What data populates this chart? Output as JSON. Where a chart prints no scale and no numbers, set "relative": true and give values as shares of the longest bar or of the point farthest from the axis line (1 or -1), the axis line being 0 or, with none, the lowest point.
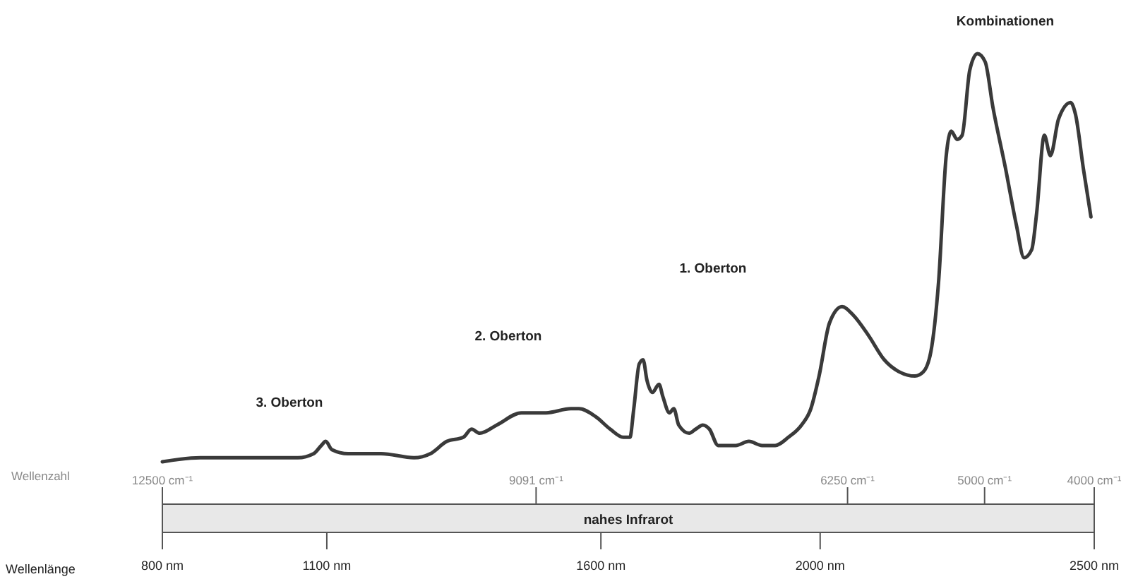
{
  "chart_data": {
    "type": "line",
    "relative": true,
    "xlabel": "Wellenlänge",
    "x2label": "Wellenzahl",
    "xlim": [
      800,
      2500
    ],
    "xticks": [
      {
        "value": 800,
        "label": "800 nm"
      },
      {
        "value": 1100,
        "label": "1100 nm"
      },
      {
        "value": 1600,
        "label": "1600 nm"
      },
      {
        "value": 2000,
        "label": "2000 nm"
      },
      {
        "value": 2500,
        "label": "2500 nm"
      }
    ],
    "x2lim": [
      12500,
      4000
    ],
    "x2ticks": [
      {
        "value": 12500,
        "label": "12500 cm⁻¹"
      },
      {
        "value": 9091,
        "label": "9091 cm⁻¹"
      },
      {
        "value": 6250,
        "label": "6250 cm⁻¹"
      },
      {
        "value": 5000,
        "label": "5000 cm⁻¹"
      },
      {
        "value": 4000,
        "label": "4000 cm⁻¹"
      }
    ],
    "annotations": [
      "3. Oberton",
      "2. Oberton",
      "1. Oberton",
      "Kombinationen",
      "nahes Infrarot"
    ],
    "series": [
      {
        "color": "#3a3a3a",
        "x": [
          800,
          869,
          968,
          1047,
          1076,
          1090,
          1098,
          1109,
          1139,
          1199,
          1259,
          1289,
          1319,
          1349,
          1364,
          1379,
          1410,
          1455,
          1500,
          1545,
          1560,
          1591,
          1617,
          1641,
          1653,
          1660,
          1670,
          1677,
          1684,
          1694,
          1706,
          1713,
          1725,
          1733,
          1742,
          1761,
          1773,
          1786,
          1798,
          1814,
          1846,
          1870,
          1894,
          1918,
          1942,
          1966,
          1983,
          1998,
          2017,
          2040,
          2060,
          2088,
          2117,
          2145,
          2173,
          2188,
          2202,
          2216,
          2230,
          2239,
          2250,
          2259,
          2273,
          2287,
          2301,
          2315,
          2338,
          2358,
          2372,
          2386,
          2395,
          2409,
          2420,
          2435,
          2457,
          2466,
          2480,
          2494
        ],
        "values": [
          0,
          0.01,
          0.01,
          0.01,
          0.02,
          0.04,
          0.05,
          0.03,
          0.02,
          0.02,
          0.01,
          0.02,
          0.05,
          0.06,
          0.08,
          0.07,
          0.09,
          0.12,
          0.12,
          0.13,
          0.13,
          0.11,
          0.08,
          0.06,
          0.06,
          0.13,
          0.24,
          0.25,
          0.2,
          0.17,
          0.19,
          0.16,
          0.12,
          0.13,
          0.09,
          0.07,
          0.08,
          0.09,
          0.08,
          0.04,
          0.04,
          0.05,
          0.04,
          0.04,
          0.06,
          0.09,
          0.13,
          0.21,
          0.34,
          0.38,
          0.36,
          0.31,
          0.25,
          0.22,
          0.21,
          0.22,
          0.27,
          0.44,
          0.75,
          0.81,
          0.79,
          0.8,
          0.96,
          1,
          0.98,
          0.87,
          0.72,
          0.58,
          0.5,
          0.52,
          0.61,
          0.8,
          0.75,
          0.84,
          0.88,
          0.85,
          0.72,
          0.6
        ]
      }
    ]
  }
}
